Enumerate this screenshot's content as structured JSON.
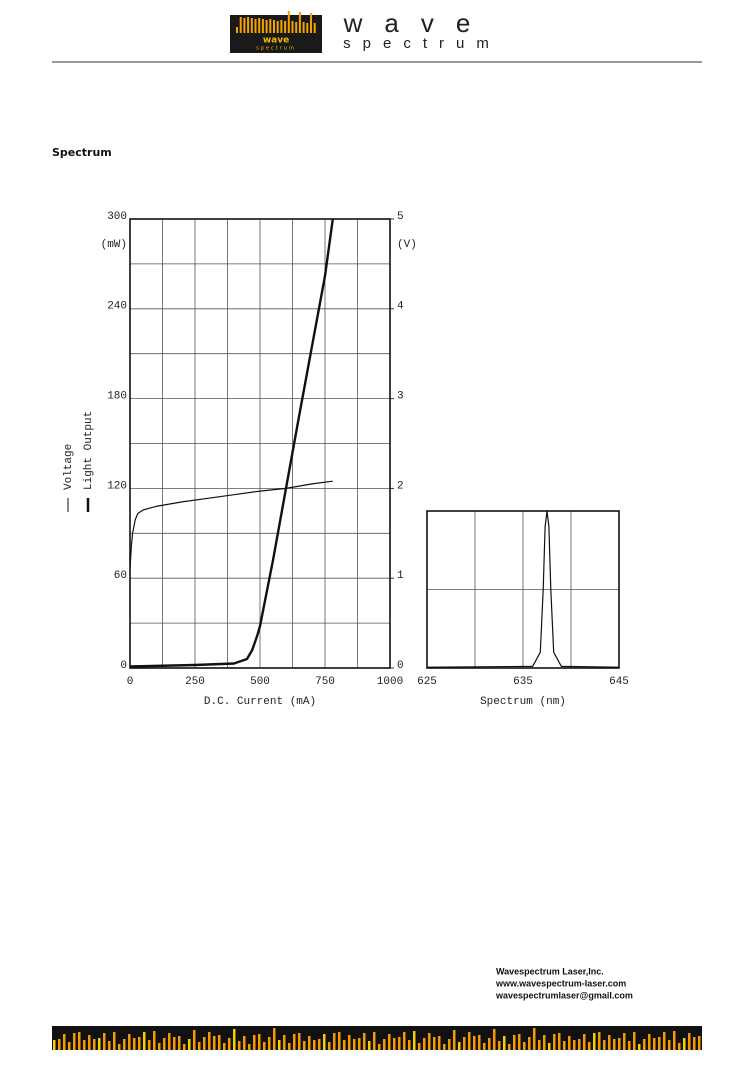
{
  "header": {
    "logo_text": "wave",
    "logo_subtext": "spectrum"
  },
  "section_title": "Spectrum",
  "chart_data": [
    {
      "type": "line",
      "xlabel": "D.C. Current (mA)",
      "ylabel": "(mW)",
      "y2label": "(V)",
      "xlim": [
        0,
        1000
      ],
      "xticks": [
        0,
        250,
        500,
        750,
        1000
      ],
      "ylim": [
        0,
        300
      ],
      "yticks": [
        0,
        60,
        120,
        180,
        240,
        300
      ],
      "y2lim": [
        0,
        5
      ],
      "y2ticks": [
        0,
        1,
        2,
        3,
        4,
        5
      ],
      "grid": true,
      "series": [
        {
          "name": "Voltage",
          "color": "#111111",
          "axis": "y2",
          "x": [
            0,
            5,
            10,
            20,
            30,
            50,
            100,
            200,
            300,
            400,
            500,
            600,
            700,
            780
          ],
          "values": [
            1.1,
            1.35,
            1.5,
            1.65,
            1.72,
            1.76,
            1.8,
            1.85,
            1.89,
            1.93,
            1.97,
            2.0,
            2.05,
            2.08
          ]
        },
        {
          "name": "Light Output",
          "color": "#111111",
          "x": [
            0,
            250,
            400,
            450,
            470,
            490,
            500,
            550,
            600,
            650,
            700,
            750,
            780
          ],
          "values": [
            1,
            2,
            3,
            6,
            12,
            22,
            28,
            72,
            120,
            168,
            215,
            262,
            300
          ]
        }
      ]
    },
    {
      "type": "line",
      "xlabel": "Spectrum (nm)",
      "xlim": [
        625,
        645
      ],
      "xticks": [
        625,
        635,
        645
      ],
      "ylim": [
        0,
        1
      ],
      "grid": true,
      "series": [
        {
          "color": "#111111",
          "x": [
            625,
            636,
            636.8,
            637.1,
            637.3,
            637.5,
            637.7,
            637.9,
            638.2,
            639,
            645
          ],
          "values": [
            0.005,
            0.01,
            0.1,
            0.5,
            0.9,
            1,
            0.9,
            0.5,
            0.1,
            0.01,
            0.005
          ]
        }
      ]
    }
  ],
  "footer": {
    "lines": [
      "Wavespectrum Laser,Inc.",
      "www.wavespectrum-laser.com",
      "wavespectrumlaser@gmail.com"
    ]
  }
}
